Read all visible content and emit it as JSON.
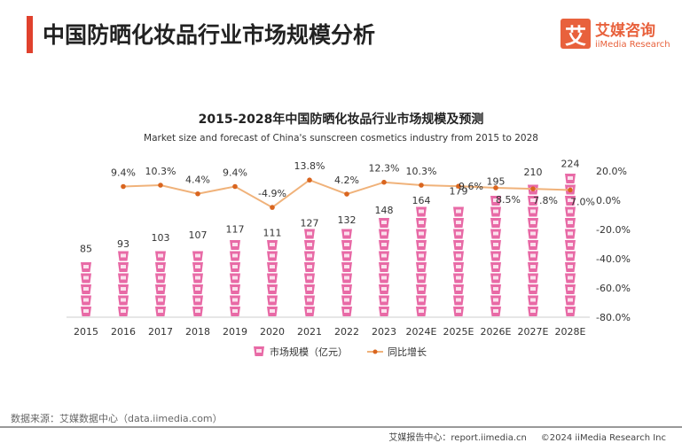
{
  "header": {
    "title": "中国防晒化妆品行业市场规模分析",
    "logo_icon": "艾",
    "logo_cn": "艾媒咨询",
    "logo_en": "iiMedia Research"
  },
  "chart_data": {
    "type": "bar+line",
    "title": "2015-2028年中国防晒化妆品行业市场规模及预测",
    "subtitle": "Market size and forecast of China's sunscreen cosmetics industry from 2015 to 2028",
    "categories": [
      "2015",
      "2016",
      "2017",
      "2018",
      "2019",
      "2020",
      "2021",
      "2022",
      "2023",
      "2024E",
      "2025E",
      "2026E",
      "2027E",
      "2028E"
    ],
    "series": [
      {
        "name": "市场规模（亿元）",
        "type": "pictogram-bar",
        "values": [
          85,
          93,
          103,
          107,
          117,
          111,
          127,
          132,
          148,
          164,
          179,
          195,
          210,
          224
        ],
        "color": "#e86aa6"
      },
      {
        "name": "同比增长",
        "type": "line",
        "axis": "right",
        "values": [
          null,
          9.4,
          10.3,
          4.4,
          9.4,
          -4.9,
          13.8,
          4.2,
          12.3,
          10.3,
          9.6,
          8.5,
          7.8,
          7.0
        ],
        "labels": [
          "",
          "9.4%",
          "10.3%",
          "4.4%",
          "9.4%",
          "-4.9%",
          "13.8%",
          "4.2%",
          "12.3%",
          "10.3%",
          "9.6%",
          "8.5%",
          "7.8%",
          "7.0%"
        ],
        "color": "#e8873a"
      }
    ],
    "right_axis": {
      "ticks": [
        "20.0%",
        "0.0%",
        "-20.0%",
        "-40.0%",
        "-60.0%",
        "-80.0%"
      ],
      "range": [
        -80,
        20
      ]
    },
    "legend": "bottom"
  },
  "footer": {
    "source": "数据来源：艾媒数据中心（data.iimedia.com）",
    "report": "艾媒报告中心：report.iimedia.cn",
    "copyright": "©2024  iiMedia Research  Inc"
  }
}
